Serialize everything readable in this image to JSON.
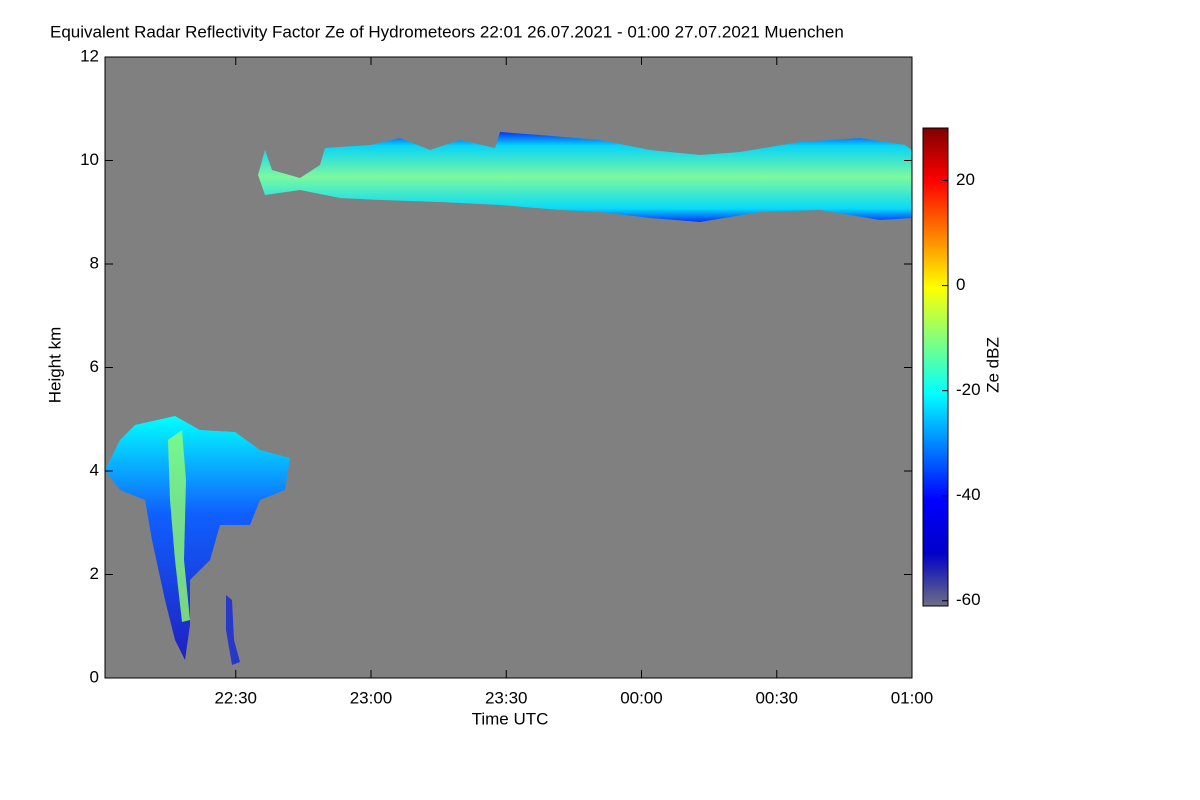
{
  "chart_data": {
    "type": "heatmap",
    "title": "Equivalent Radar Reflectivity Factor Ze of Hydrometeors   22:01 26.07.2021 - 01:00 27.07.2021 Muenchen",
    "x_label": "Time UTC",
    "y_label": "Height km",
    "colorbar_label": "Ze dBZ",
    "xlim": [
      1,
      180
    ],
    "xticks": [
      {
        "value": 30,
        "label": "22:30"
      },
      {
        "value": 60,
        "label": "23:00"
      },
      {
        "value": 90,
        "label": "23:30"
      },
      {
        "value": 120,
        "label": "00:00"
      },
      {
        "value": 150,
        "label": "00:30"
      },
      {
        "value": 180,
        "label": "01:00"
      }
    ],
    "ylim": [
      0,
      12
    ],
    "yticks": [
      0,
      2,
      4,
      6,
      8,
      10,
      12
    ],
    "clim": [
      -61,
      30
    ],
    "cticks": [
      -60,
      -40,
      -20,
      0,
      20
    ],
    "colormap": [
      "#6e6e86",
      "#0000c8",
      "#0000ff",
      "#0080ff",
      "#00ffff",
      "#80ff80",
      "#ffff00",
      "#ff8000",
      "#ff0000",
      "#800000"
    ],
    "background": "#808080"
  }
}
